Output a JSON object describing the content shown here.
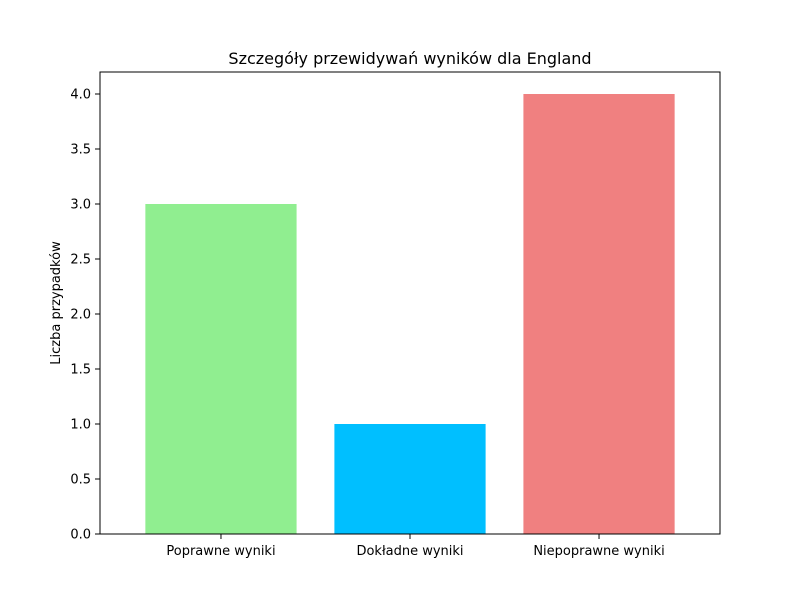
{
  "chart_data": {
    "type": "bar",
    "title": "Szczegóły przewidywań wyników dla England",
    "xlabel": "",
    "ylabel": "Liczba przypadków",
    "categories": [
      "Poprawne wyniki",
      "Dokładne wyniki",
      "Niepoprawne wyniki"
    ],
    "values": [
      3,
      1,
      4
    ],
    "colors": [
      "#90ee90",
      "#00bfff",
      "#f08080"
    ],
    "ylim": [
      0,
      4.2
    ],
    "yticks": [
      0.0,
      0.5,
      1.0,
      1.5,
      2.0,
      2.5,
      3.0,
      3.5,
      4.0
    ],
    "ytick_labels": [
      "0.0",
      "0.5",
      "1.0",
      "1.5",
      "2.0",
      "2.5",
      "3.0",
      "3.5",
      "4.0"
    ],
    "grid": false,
    "legend": "none"
  }
}
